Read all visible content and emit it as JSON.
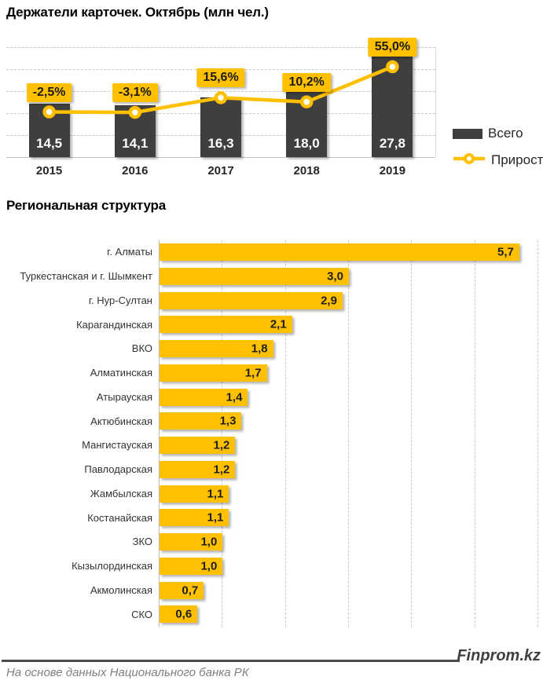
{
  "colors": {
    "accent_yellow": "#FFC000",
    "bar_dark": "#3F3F3F",
    "grid": "#c9c9c9",
    "axis": "#bfbfbf",
    "footer_line": "#4d4d4d",
    "muted_text": "#7f7f7f"
  },
  "footer": {
    "brand": "Finprom.kz",
    "source": "На основе данных Национального банка РК"
  },
  "chart_data": [
    {
      "type": "bar",
      "title": "Держатели карточек. Октябрь (млн чел.)",
      "categories": [
        "2015",
        "2016",
        "2017",
        "2018",
        "2019"
      ],
      "series": [
        {
          "name": "Всего",
          "type": "bar",
          "values": [
            14.5,
            14.1,
            16.3,
            18.0,
            27.8
          ],
          "labels": [
            "14,5",
            "14,1",
            "16,3",
            "18,0",
            "27,8"
          ],
          "color": "#3F3F3F"
        },
        {
          "name": "Прирост",
          "type": "line",
          "values": [
            -2.5,
            -3.1,
            15.6,
            10.2,
            55.0
          ],
          "labels": [
            "-2,5%",
            "-3,1%",
            "15,6%",
            "10,2%",
            "55,0%"
          ],
          "color": "#FFC000"
        }
      ],
      "ylim": [
        0,
        30
      ],
      "y2lim": [
        -60,
        80
      ],
      "grid": "horizontal-dashed",
      "legend_position": "right"
    },
    {
      "type": "bar",
      "orientation": "horizontal",
      "title": "Региональная структура",
      "categories": [
        "г. Алматы",
        "Туркестанская и г. Шымкент",
        "г. Нур-Султан",
        "Карагандинская",
        "ВКО",
        "Алматинская",
        "Атырауская",
        "Актюбинская",
        "Мангистауская",
        "Павлодарская",
        "Жамбылская",
        "Костанайская",
        "ЗКО",
        "Кызылординская",
        "Акмолинская",
        "СКО"
      ],
      "values": [
        5.7,
        3.0,
        2.9,
        2.1,
        1.8,
        1.7,
        1.4,
        1.3,
        1.2,
        1.2,
        1.1,
        1.1,
        1.0,
        1.0,
        0.7,
        0.6
      ],
      "labels": [
        "5,7",
        "3,0",
        "2,9",
        "2,1",
        "1,8",
        "1,7",
        "1,4",
        "1,3",
        "1,2",
        "1,2",
        "1,1",
        "1,1",
        "1,0",
        "1,0",
        "0,7",
        "0,6"
      ],
      "xlim": [
        0,
        6
      ],
      "grid": "vertical-dashed",
      "legend_position": "none",
      "bar_color": "#FFC000"
    }
  ]
}
